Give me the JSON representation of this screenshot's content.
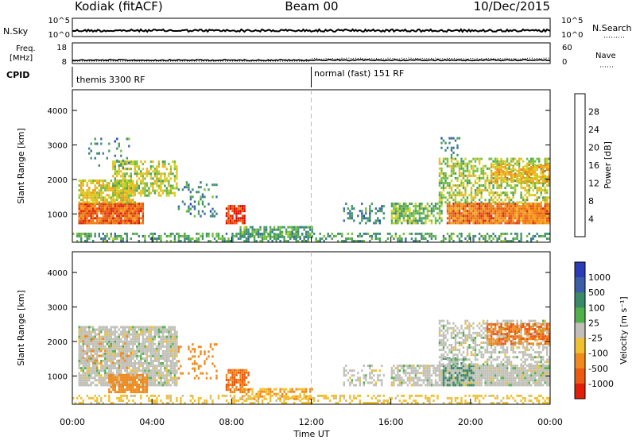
{
  "header": {
    "station": "Kodiak (fitACF)",
    "beam": "Beam 00",
    "date": "10/Dec/2015"
  },
  "panels": {
    "nsky": {
      "label": "N.Sky",
      "ticks": [
        "10^5",
        "10^0"
      ],
      "right_ticks": [
        "10^5",
        "10^0"
      ],
      "right_label": "N.Search"
    },
    "freq": {
      "label_line1": "Freq.",
      "label_line2": "[MHz]",
      "ticks": [
        "18",
        "8"
      ],
      "right_ticks": [
        "60",
        "0"
      ],
      "right_label": "Nave"
    },
    "cpid": {
      "label": "CPID",
      "modes": [
        {
          "name": "themis 3300 RF",
          "start_hour": 0
        },
        {
          "name": "normal (fast) 151 RF",
          "start_hour": 12
        }
      ]
    }
  },
  "axes": {
    "ylabel": "Slant Range [km]",
    "yticks": [
      "1000",
      "2000",
      "3000",
      "4000"
    ],
    "xticks": [
      "00:00",
      "04:00",
      "08:00",
      "12:00",
      "16:00",
      "20:00",
      "00:00"
    ],
    "xlabel": "Time UT"
  },
  "colorbars": {
    "power": {
      "label": "Power [dB]",
      "ticks": [
        "4",
        "8",
        "12",
        "16",
        "20",
        "24",
        "28"
      ],
      "colors": [
        "#0a1ee6",
        "#2446c8",
        "#3c6e9c",
        "#3e8a78",
        "#4aa05a",
        "#74be3c",
        "#d2d21e",
        "#f0b41a",
        "#f59a14",
        "#f07a10",
        "#ea5a0a",
        "#e02a0a",
        "#dc0a0a"
      ]
    },
    "velocity": {
      "label": "Velocity [m s⁻¹]",
      "ticks": [
        "1000",
        "500",
        "100",
        "25",
        "-25",
        "-100",
        "-500",
        "-1000"
      ],
      "colors": [
        "#2a3cb8",
        "#3a5ea8",
        "#3a8a6a",
        "#52b04a",
        "#c0c0b8",
        "#f0c030",
        "#f08a1c",
        "#ec5a12",
        "#e01e0a"
      ]
    }
  },
  "chart_data": {
    "type": "heatmap",
    "x_range_hours": [
      0,
      24
    ],
    "y_range_km": [
      180,
      4600
    ],
    "vertical_marker_hour": 12,
    "power_regions": [
      {
        "t0": 0.3,
        "t1": 3.6,
        "r0": 700,
        "r1": 1300,
        "level": 24,
        "density": 0.95
      },
      {
        "t0": 0.3,
        "t1": 3.2,
        "r0": 1300,
        "r1": 2000,
        "level": 16,
        "density": 0.75
      },
      {
        "t0": 2.0,
        "t1": 5.2,
        "r0": 1500,
        "r1": 2500,
        "level": 14,
        "density": 0.6
      },
      {
        "t0": 0.8,
        "t1": 3.0,
        "r0": 2300,
        "r1": 3200,
        "level": 8,
        "density": 0.12
      },
      {
        "t0": 5.3,
        "t1": 7.2,
        "r0": 900,
        "r1": 1900,
        "level": 8,
        "density": 0.2
      },
      {
        "t0": 7.7,
        "t1": 8.6,
        "r0": 700,
        "r1": 1200,
        "level": 26,
        "density": 0.85
      },
      {
        "t0": 8.4,
        "t1": 12.0,
        "r0": 300,
        "r1": 600,
        "level": 10,
        "density": 0.7
      },
      {
        "t0": 0.0,
        "t1": 24.0,
        "r0": 180,
        "r1": 420,
        "level": 10,
        "density": 0.45
      },
      {
        "t0": 13.6,
        "t1": 15.6,
        "r0": 700,
        "r1": 1300,
        "level": 8,
        "density": 0.3
      },
      {
        "t0": 16.0,
        "t1": 18.6,
        "r0": 700,
        "r1": 1300,
        "level": 12,
        "density": 0.7
      },
      {
        "t0": 18.8,
        "t1": 24.0,
        "r0": 700,
        "r1": 1300,
        "level": 22,
        "density": 0.95
      },
      {
        "t0": 18.4,
        "t1": 24.0,
        "r0": 1300,
        "r1": 2600,
        "level": 14,
        "density": 0.55
      },
      {
        "t0": 21.0,
        "t1": 24.0,
        "r0": 1900,
        "r1": 2400,
        "level": 18,
        "density": 0.65
      },
      {
        "t0": 18.5,
        "t1": 19.5,
        "r0": 2600,
        "r1": 3300,
        "level": 8,
        "density": 0.2
      }
    ],
    "velocity_regions": [
      {
        "t0": 0.3,
        "t1": 5.2,
        "r0": 700,
        "r1": 2400,
        "v": 0,
        "density": 0.85
      },
      {
        "t0": 1.8,
        "t1": 3.8,
        "r0": 500,
        "r1": 1000,
        "v": -300,
        "density": 0.8
      },
      {
        "t0": 0.5,
        "t1": 3.0,
        "r0": 1200,
        "r1": 2200,
        "v": -150,
        "density": 0.12
      },
      {
        "t0": 5.3,
        "t1": 7.2,
        "r0": 900,
        "r1": 1900,
        "v": -200,
        "density": 0.2
      },
      {
        "t0": 7.7,
        "t1": 8.8,
        "r0": 500,
        "r1": 1200,
        "v": -500,
        "density": 0.7
      },
      {
        "t0": 8.4,
        "t1": 12.0,
        "r0": 300,
        "r1": 600,
        "v": -100,
        "density": 0.6
      },
      {
        "t0": 0.0,
        "t1": 24.0,
        "r0": 180,
        "r1": 420,
        "v": -50,
        "density": 0.35
      },
      {
        "t0": 13.6,
        "t1": 15.6,
        "r0": 700,
        "r1": 1300,
        "v": 0,
        "density": 0.35
      },
      {
        "t0": 16.0,
        "t1": 18.6,
        "r0": 700,
        "r1": 1300,
        "v": 0,
        "density": 0.7
      },
      {
        "t0": 18.4,
        "t1": 24.0,
        "r0": 700,
        "r1": 1300,
        "v": 0,
        "density": 0.95
      },
      {
        "t0": 18.6,
        "t1": 20.2,
        "r0": 700,
        "r1": 1500,
        "v": 200,
        "density": 0.4
      },
      {
        "t0": 18.4,
        "t1": 24.0,
        "r0": 1300,
        "r1": 2600,
        "v": 0,
        "density": 0.5
      },
      {
        "t0": 20.8,
        "t1": 24.0,
        "r0": 1900,
        "r1": 2500,
        "v": -500,
        "density": 0.7
      }
    ]
  }
}
